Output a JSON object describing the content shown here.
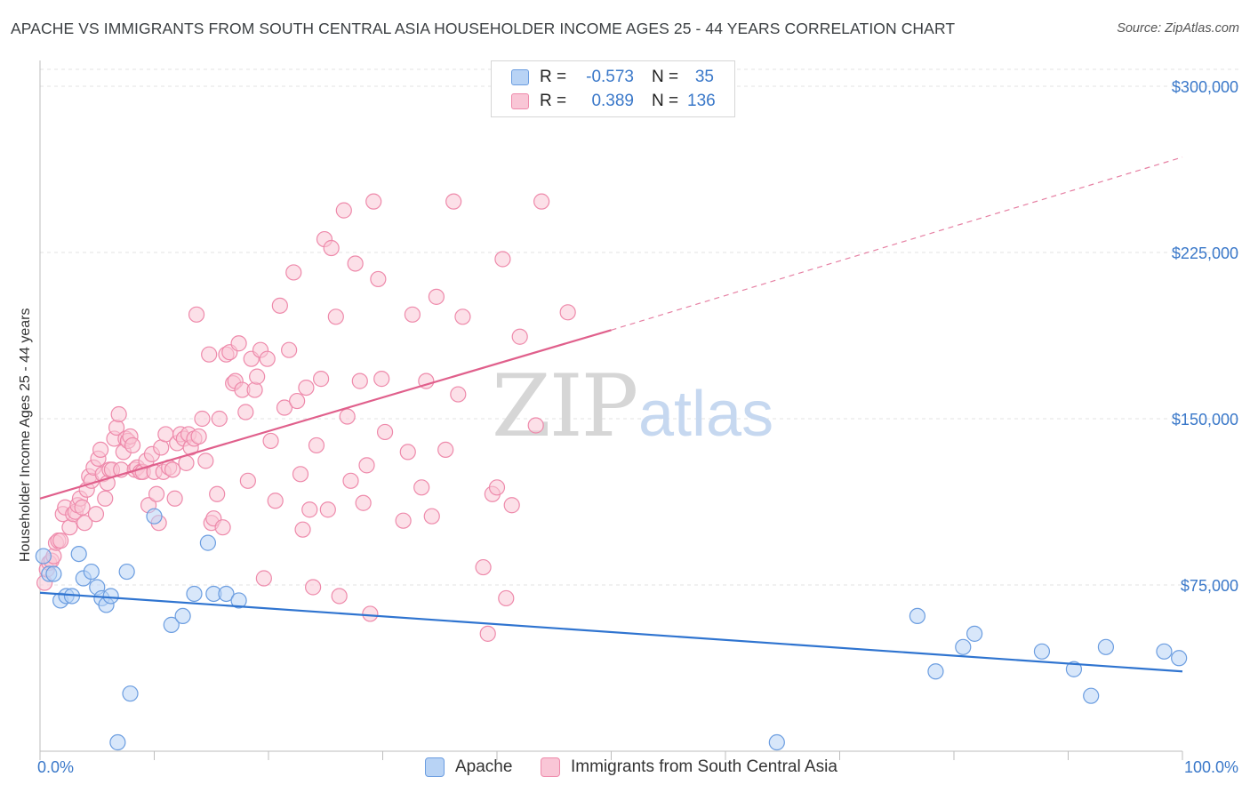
{
  "title": "APACHE VS IMMIGRANTS FROM SOUTH CENTRAL ASIA HOUSEHOLDER INCOME AGES 25 - 44 YEARS CORRELATION CHART",
  "source": "Source: ZipAtlas.com",
  "watermark": {
    "zip": "ZIP",
    "atlas": "atlas"
  },
  "colors": {
    "apache_fill": "#b8d3f5",
    "apache_stroke": "#6b9de0",
    "apache_line": "#2f74d0",
    "immig_fill": "#f9c6d6",
    "immig_stroke": "#ee8aab",
    "immig_line": "#e0608c",
    "tick_text": "#3a78c9",
    "grid": "#e3e3e3"
  },
  "legend": {
    "rows": [
      {
        "r_label": "R =",
        "r_value": "-0.573",
        "n_label": "N =",
        "n_value": "35"
      },
      {
        "r_label": "R =",
        "r_value": "0.389",
        "n_label": "N =",
        "n_value": "136"
      }
    ]
  },
  "bottom_legend": {
    "apache": "Apache",
    "immigrants": "Immigrants from South Central Asia"
  },
  "chart_data": {
    "type": "scatter",
    "title": "APACHE VS IMMIGRANTS FROM SOUTH CENTRAL ASIA HOUSEHOLDER INCOME AGES 25 - 44 YEARS CORRELATION CHART",
    "xlabel": "",
    "ylabel": "Householder Income Ages 25 - 44 years",
    "xlim": [
      0,
      100
    ],
    "ylim": [
      0,
      310000
    ],
    "x_tick_labels": [
      "0.0%",
      "100.0%"
    ],
    "y_ticks": [
      75000,
      150000,
      225000,
      300000
    ],
    "y_tick_labels": [
      "$75,000",
      "$150,000",
      "$225,000",
      "$300,000"
    ],
    "legend_position": "top-center",
    "series": [
      {
        "name": "Apache",
        "r": -0.573,
        "n": 35,
        "trend": {
          "x": [
            0,
            100
          ],
          "y": [
            71500,
            36000
          ],
          "dashed_to": null
        },
        "points": [
          [
            0.3,
            88000
          ],
          [
            0.8,
            80000
          ],
          [
            1.2,
            80000
          ],
          [
            1.8,
            68000
          ],
          [
            2.3,
            70000
          ],
          [
            2.8,
            70000
          ],
          [
            3.4,
            89000
          ],
          [
            3.8,
            78000
          ],
          [
            4.5,
            81000
          ],
          [
            5.0,
            74000
          ],
          [
            5.4,
            69000
          ],
          [
            5.8,
            66000
          ],
          [
            6.2,
            70000
          ],
          [
            6.8,
            4000
          ],
          [
            7.6,
            81000
          ],
          [
            7.9,
            26000
          ],
          [
            10.0,
            106000
          ],
          [
            11.5,
            57000
          ],
          [
            12.5,
            61000
          ],
          [
            13.5,
            71000
          ],
          [
            14.7,
            94000
          ],
          [
            15.2,
            71000
          ],
          [
            16.3,
            71000
          ],
          [
            17.4,
            68000
          ],
          [
            64.5,
            4000
          ],
          [
            76.8,
            61000
          ],
          [
            78.4,
            36000
          ],
          [
            80.8,
            47000
          ],
          [
            81.8,
            53000
          ],
          [
            87.7,
            45000
          ],
          [
            90.5,
            37000
          ],
          [
            92.0,
            25000
          ],
          [
            93.3,
            47000
          ],
          [
            98.4,
            45000
          ],
          [
            99.7,
            42000
          ]
        ]
      },
      {
        "name": "Immigrants from South Central Asia",
        "r": 0.389,
        "n": 136,
        "trend": {
          "x": [
            0,
            50
          ],
          "y": [
            114000,
            190000
          ],
          "dashed_to": [
            100,
            268000
          ]
        },
        "points": [
          [
            0.4,
            76000
          ],
          [
            0.6,
            82000
          ],
          [
            0.8,
            85000
          ],
          [
            1.0,
            86000
          ],
          [
            1.2,
            88000
          ],
          [
            1.4,
            94000
          ],
          [
            1.6,
            95000
          ],
          [
            1.8,
            95000
          ],
          [
            2.0,
            107000
          ],
          [
            2.2,
            110000
          ],
          [
            2.6,
            101000
          ],
          [
            2.9,
            107000
          ],
          [
            3.1,
            108000
          ],
          [
            3.3,
            111000
          ],
          [
            3.5,
            114000
          ],
          [
            3.7,
            110000
          ],
          [
            3.9,
            103000
          ],
          [
            4.1,
            118000
          ],
          [
            4.3,
            124000
          ],
          [
            4.5,
            122000
          ],
          [
            4.7,
            128000
          ],
          [
            4.9,
            107000
          ],
          [
            5.1,
            132000
          ],
          [
            5.3,
            136000
          ],
          [
            5.5,
            125000
          ],
          [
            5.7,
            114000
          ],
          [
            5.9,
            121000
          ],
          [
            6.1,
            127000
          ],
          [
            6.3,
            127000
          ],
          [
            6.5,
            141000
          ],
          [
            6.7,
            146000
          ],
          [
            6.9,
            152000
          ],
          [
            7.1,
            127000
          ],
          [
            7.3,
            135000
          ],
          [
            7.5,
            141000
          ],
          [
            7.7,
            140000
          ],
          [
            7.9,
            142000
          ],
          [
            8.1,
            138000
          ],
          [
            8.3,
            127000
          ],
          [
            8.5,
            128000
          ],
          [
            8.8,
            126000
          ],
          [
            9.0,
            126000
          ],
          [
            9.3,
            131000
          ],
          [
            9.5,
            111000
          ],
          [
            9.8,
            134000
          ],
          [
            10.0,
            126000
          ],
          [
            10.2,
            116000
          ],
          [
            10.4,
            103000
          ],
          [
            10.6,
            137000
          ],
          [
            10.8,
            126000
          ],
          [
            11.0,
            143000
          ],
          [
            11.3,
            128000
          ],
          [
            11.6,
            127000
          ],
          [
            11.8,
            114000
          ],
          [
            12.0,
            139000
          ],
          [
            12.3,
            143000
          ],
          [
            12.6,
            141000
          ],
          [
            12.8,
            130000
          ],
          [
            13.0,
            143000
          ],
          [
            13.2,
            137000
          ],
          [
            13.5,
            141000
          ],
          [
            13.7,
            197000
          ],
          [
            13.9,
            142000
          ],
          [
            14.2,
            150000
          ],
          [
            14.5,
            131000
          ],
          [
            14.8,
            179000
          ],
          [
            15.0,
            103000
          ],
          [
            15.2,
            105000
          ],
          [
            15.5,
            116000
          ],
          [
            15.7,
            150000
          ],
          [
            16.0,
            101000
          ],
          [
            16.3,
            179000
          ],
          [
            16.6,
            180000
          ],
          [
            16.9,
            166000
          ],
          [
            17.1,
            167000
          ],
          [
            17.4,
            184000
          ],
          [
            17.7,
            163000
          ],
          [
            18.0,
            153000
          ],
          [
            18.2,
            122000
          ],
          [
            18.5,
            177000
          ],
          [
            18.8,
            163000
          ],
          [
            19.0,
            169000
          ],
          [
            19.3,
            181000
          ],
          [
            19.6,
            78000
          ],
          [
            19.9,
            177000
          ],
          [
            20.2,
            140000
          ],
          [
            20.6,
            113000
          ],
          [
            21.0,
            201000
          ],
          [
            21.4,
            155000
          ],
          [
            21.8,
            181000
          ],
          [
            22.2,
            216000
          ],
          [
            22.5,
            158000
          ],
          [
            22.8,
            125000
          ],
          [
            23.0,
            100000
          ],
          [
            23.3,
            164000
          ],
          [
            23.6,
            109000
          ],
          [
            23.9,
            74000
          ],
          [
            24.2,
            138000
          ],
          [
            24.6,
            168000
          ],
          [
            24.9,
            231000
          ],
          [
            25.2,
            109000
          ],
          [
            25.5,
            227000
          ],
          [
            25.9,
            196000
          ],
          [
            26.2,
            70000
          ],
          [
            26.6,
            244000
          ],
          [
            26.9,
            151000
          ],
          [
            27.2,
            122000
          ],
          [
            27.6,
            220000
          ],
          [
            28.0,
            167000
          ],
          [
            28.3,
            112000
          ],
          [
            28.6,
            129000
          ],
          [
            28.9,
            62000
          ],
          [
            29.2,
            248000
          ],
          [
            29.6,
            213000
          ],
          [
            29.9,
            168000
          ],
          [
            30.2,
            144000
          ],
          [
            31.8,
            104000
          ],
          [
            32.2,
            135000
          ],
          [
            32.6,
            197000
          ],
          [
            33.4,
            119000
          ],
          [
            33.8,
            167000
          ],
          [
            34.3,
            106000
          ],
          [
            34.7,
            205000
          ],
          [
            35.5,
            136000
          ],
          [
            36.2,
            248000
          ],
          [
            36.6,
            161000
          ],
          [
            37.0,
            196000
          ],
          [
            38.8,
            83000
          ],
          [
            39.2,
            53000
          ],
          [
            39.6,
            116000
          ],
          [
            40.0,
            119000
          ],
          [
            40.5,
            222000
          ],
          [
            40.8,
            69000
          ],
          [
            41.3,
            111000
          ],
          [
            42.0,
            187000
          ],
          [
            43.4,
            147000
          ],
          [
            43.9,
            248000
          ],
          [
            46.2,
            198000
          ]
        ]
      }
    ]
  }
}
